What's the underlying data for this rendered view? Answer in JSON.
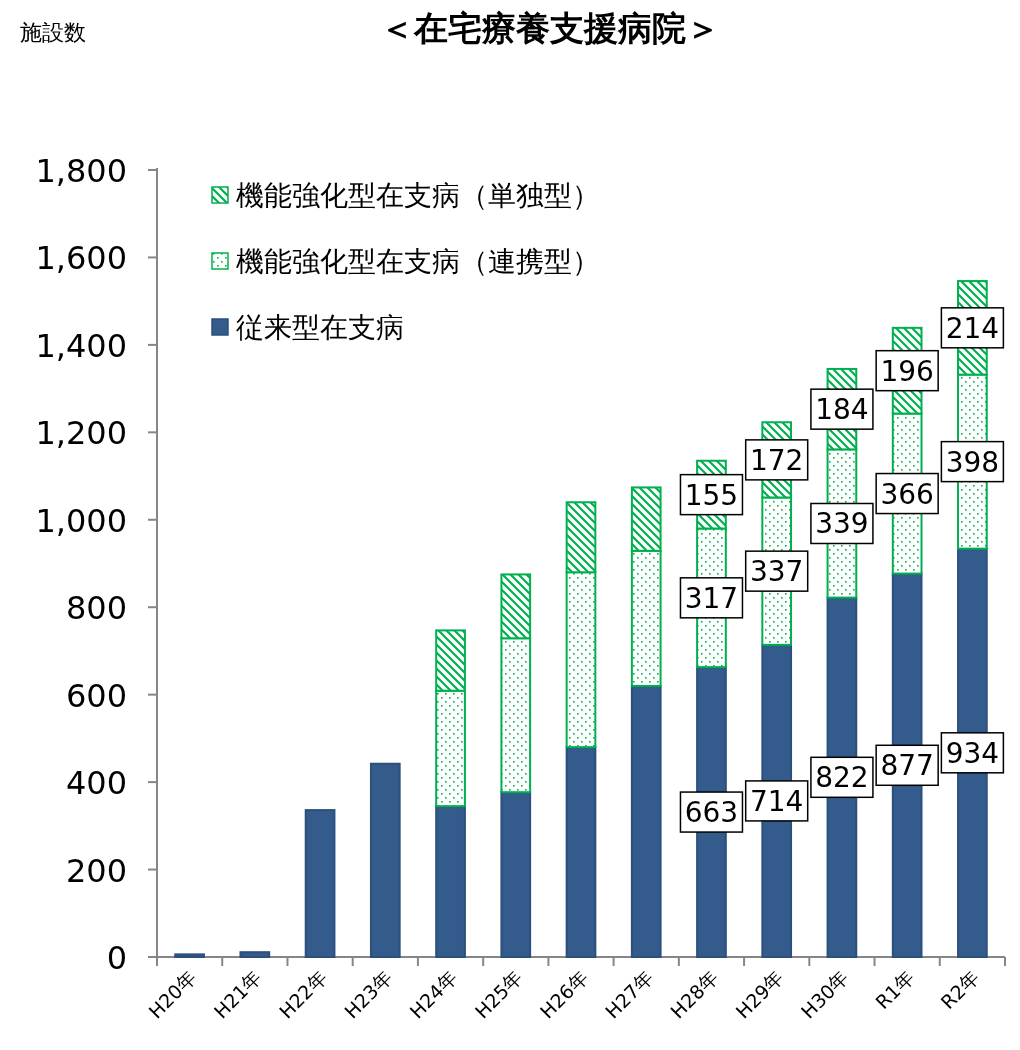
{
  "chart_data": {
    "type": "bar",
    "title": "＜在宅療養支援病院＞",
    "ylabel": "施設数",
    "stacked": true,
    "legend": "top left",
    "grid": false,
    "categories": [
      "H20年",
      "H21年",
      "H22年",
      "H23年",
      "H24年",
      "H25年",
      "H26年",
      "H27年",
      "H28年",
      "H29年",
      "H30年",
      "R1年",
      "R2年"
    ],
    "ylim": [
      0,
      1800
    ],
    "yticks": [
      0,
      200,
      400,
      600,
      800,
      {
        "value": 1000,
        "label": "1,000"
      },
      {
        "value": 1200,
        "label": "1,200"
      },
      {
        "value": 1400,
        "label": "1,400"
      },
      {
        "value": 1600,
        "label": "1,600"
      },
      {
        "value": 1800,
        "label": "1,800"
      }
    ],
    "series": [
      {
        "name": "従来型在支病",
        "color": "#335b8b",
        "values": [
          6,
          11,
          336,
          442,
          345,
          377,
          480,
          620,
          663,
          714,
          822,
          877,
          934
        ],
        "value_labels": [
          null,
          null,
          null,
          null,
          null,
          null,
          null,
          null,
          "663",
          "714",
          "822",
          "877",
          "934"
        ]
      },
      {
        "name": "機能強化型在支病（連携型）",
        "color": "#00b050",
        "values": [
          null,
          null,
          null,
          null,
          264,
          352,
          400,
          309,
          317,
          337,
          339,
          366,
          398
        ],
        "value_labels": [
          null,
          null,
          null,
          null,
          null,
          null,
          null,
          null,
          "317",
          "337",
          "339",
          "366",
          "398"
        ]
      },
      {
        "name": "機能強化型在支病（単独型）",
        "color": "#00b050",
        "values": [
          null,
          null,
          null,
          null,
          138,
          146,
          160,
          145,
          155,
          172,
          184,
          196,
          214
        ],
        "value_labels": [
          null,
          null,
          null,
          null,
          null,
          null,
          null,
          null,
          "155",
          "172",
          "184",
          "196",
          "214"
        ]
      }
    ]
  }
}
